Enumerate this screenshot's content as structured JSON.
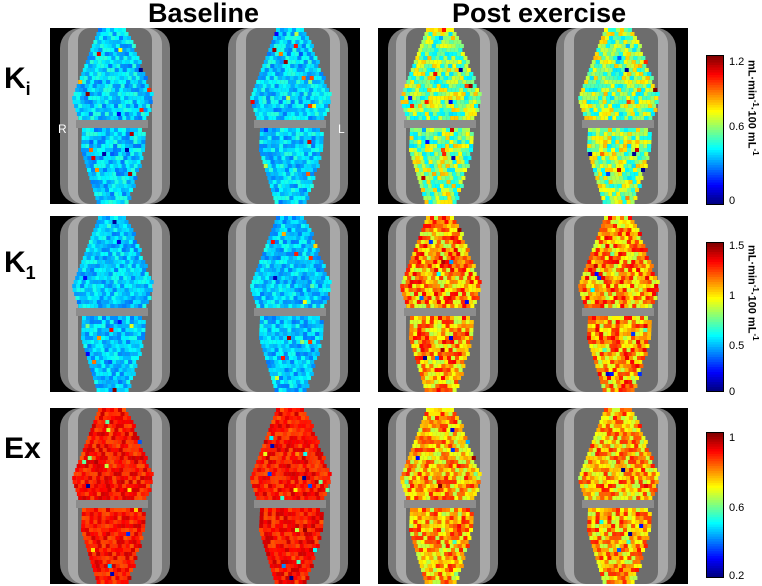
{
  "columns": [
    "Baseline",
    "Post exercise"
  ],
  "rows": [
    {
      "symbol": "K",
      "subscript": "i",
      "unit": {
        "main": "mL·min",
        "sup1": "-1",
        "mid": "·100 mL",
        "sup2": "-1"
      },
      "ticks": [
        "1.2",
        "0.6",
        "0"
      ]
    },
    {
      "symbol": "K",
      "subscript": "1",
      "unit": {
        "main": "mL·min",
        "sup1": "-1",
        "mid": "·100 mL",
        "sup2": "-1"
      },
      "ticks": [
        "1.5",
        "1",
        "0.5",
        "0"
      ]
    },
    {
      "symbol": "Ex",
      "subscript": "",
      "unit": null,
      "ticks": [
        "1",
        "0.6",
        "0.2"
      ]
    }
  ],
  "side_labels": {
    "right": "R",
    "left": "L"
  },
  "colormap": "jet",
  "colors": {
    "background": "#000000",
    "anatomy_gray": "#8c8c8c"
  }
}
